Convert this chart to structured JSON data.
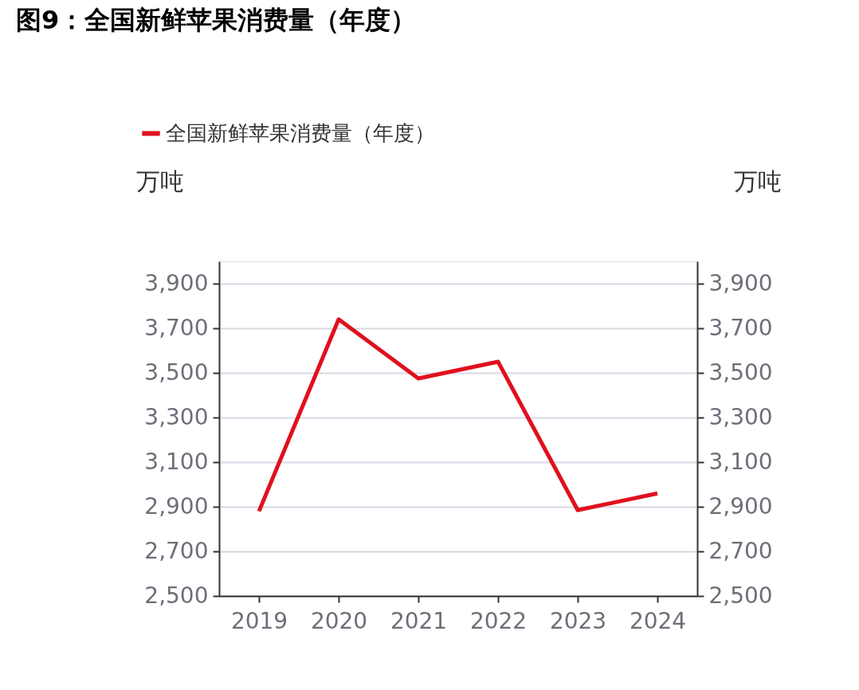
{
  "chart_data": {
    "type": "line",
    "title": "图9：全国新鲜苹果消费量（年度）",
    "categories": [
      "2019",
      "2020",
      "2021",
      "2022",
      "2023",
      "2024"
    ],
    "series": [
      {
        "name": "全国新鲜苹果消费量（年度）",
        "color": "#e0101e",
        "values": [
          2880,
          3740,
          3475,
          3550,
          2885,
          2960
        ]
      }
    ],
    "ylabel": "万吨",
    "y2label": "万吨",
    "ylim": [
      2500,
      4000
    ],
    "yticks": [
      {
        "value": 2500,
        "label": "2,500"
      },
      {
        "value": 2700,
        "label": "2,700"
      },
      {
        "value": 2900,
        "label": "2,900"
      },
      {
        "value": 3100,
        "label": "3,100"
      },
      {
        "value": 3300,
        "label": "3,300"
      },
      {
        "value": 3500,
        "label": "3,500"
      },
      {
        "value": 3700,
        "label": "3,700"
      },
      {
        "value": 3900,
        "label": "3,900"
      }
    ],
    "y2lim": [
      2500,
      4000
    ],
    "y2ticks": [
      {
        "value": 2500,
        "label": "2,500"
      },
      {
        "value": 2700,
        "label": "2,700"
      },
      {
        "value": 2900,
        "label": "2,900"
      },
      {
        "value": 3100,
        "label": "3,100"
      },
      {
        "value": 3300,
        "label": "3,300"
      },
      {
        "value": 3500,
        "label": "3,500"
      },
      {
        "value": 3700,
        "label": "3,700"
      },
      {
        "value": 3900,
        "label": "3,900"
      }
    ],
    "grid": "y",
    "legend": "top left",
    "marker": "none",
    "line_style": "solid"
  }
}
